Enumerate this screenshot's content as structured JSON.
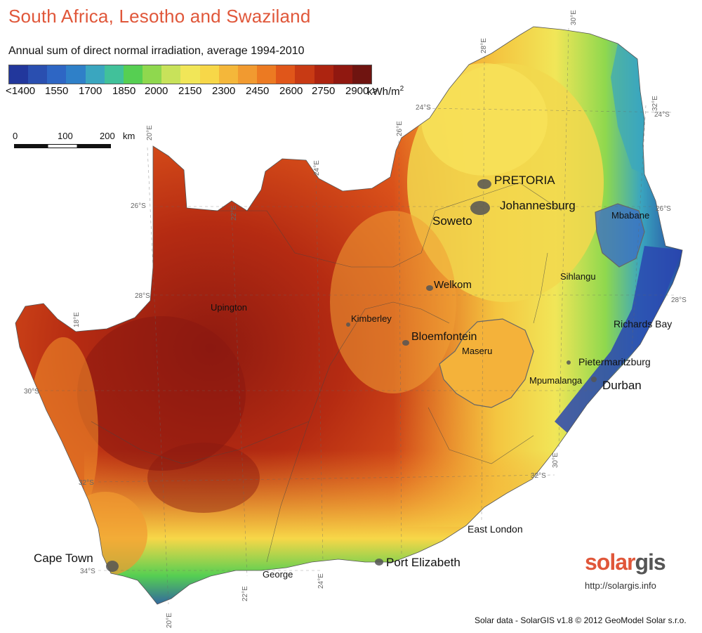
{
  "title": "South Africa, Lesotho and Swaziland",
  "subtitle": "Annual sum of direct normal irradiation, average 1994-2010",
  "legend": {
    "labels": [
      "<1400",
      "1550",
      "1700",
      "1850",
      "2000",
      "2150",
      "2300",
      "2450",
      "2600",
      "2750",
      "2900 >"
    ],
    "unit": "kWh/m",
    "unit_exp": "2",
    "colors": [
      "#22379c",
      "#2a4fb0",
      "#2e66c4",
      "#2f80c8",
      "#3aa6bf",
      "#41c19a",
      "#56cf52",
      "#8fd84e",
      "#c8e25a",
      "#f1e658",
      "#f7d748",
      "#f4b73a",
      "#f19a30",
      "#ec7a22",
      "#e0561a",
      "#c83a14",
      "#ad2410",
      "#901810",
      "#6f1410"
    ]
  },
  "scale": {
    "labels": [
      "0",
      "100",
      "200",
      "km"
    ]
  },
  "grid_labels": [
    "30°E",
    "28°E",
    "26°E",
    "24°E",
    "22°E",
    "20°E",
    "18°E",
    "32°E",
    "24°S",
    "26°S",
    "28°S",
    "30°S",
    "32°S",
    "34°S",
    "24°S",
    "26°S",
    "28°S",
    "32°S",
    "30°E",
    "22°E",
    "24°E",
    "20°E"
  ],
  "cities": {
    "pretoria": "PRETORIA",
    "johannesburg": "Johannesburg",
    "soweto": "Soweto",
    "mbabane": "Mbabane",
    "welkom": "Welkom",
    "sihlangu": "Sihlangu",
    "upington": "Upington",
    "kimberley": "Kimberley",
    "bloemfontein": "Bloemfontein",
    "maseru": "Maseru",
    "richards_bay": "Richards Bay",
    "pietermaritzburg": "Pietermaritzburg",
    "mpumalanga": "Mpumalanga",
    "durban": "Durban",
    "east_london": "East London",
    "cape_town": "Cape Town",
    "port_elizabeth": "Port Elizabeth",
    "george": "George"
  },
  "logo": {
    "solar": "solar",
    "gis": "gis",
    "url": "http://solargis.info"
  },
  "credit": "Solar data - SolarGIS v1.8 © 2012 GeoModel Solar s.r.o."
}
